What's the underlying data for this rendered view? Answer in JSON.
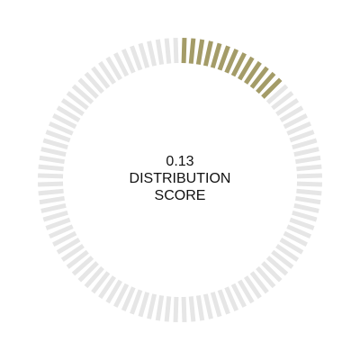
{
  "chart_data": {
    "type": "gauge",
    "value": 0.13,
    "range": [
      0,
      1
    ],
    "segments": 100,
    "direction": "clockwise from top",
    "colors": {
      "filled": "#a49c68",
      "empty": "#e6e6e6"
    },
    "center_text": {
      "value": "0.13",
      "label_line1": "DISTRIBUTION",
      "label_line2": "SCORE"
    }
  }
}
